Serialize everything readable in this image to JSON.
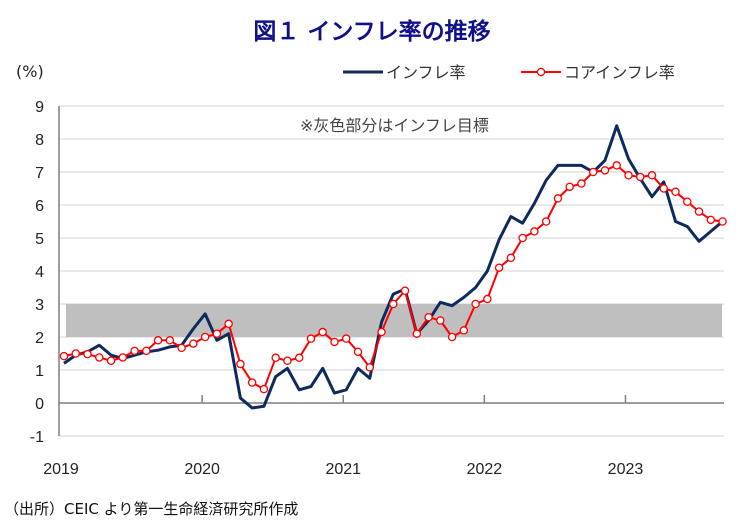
{
  "title": "図１ インフレ率の推移",
  "source": "（出所）CEIC より第一生命経済研究所作成",
  "colors": {
    "inflation": "#0e2a5c",
    "core": "#ff0000",
    "band": "#bfbfbf",
    "title": "#10108a"
  },
  "chart_data": {
    "type": "line",
    "title": "図１ インフレ率の推移",
    "ylabel": "(%)",
    "xlabel": "",
    "ylim": [
      -1,
      9
    ],
    "yticks": [
      "-1",
      "0",
      "1",
      "2",
      "3",
      "4",
      "5",
      "6",
      "7",
      "8",
      "9"
    ],
    "xticks": [
      "2019",
      "2020",
      "2021",
      "2022",
      "2023"
    ],
    "x_start": "2019-01",
    "x_end": "2023-09",
    "frequency": "monthly",
    "grid": true,
    "legend_position": "top-right",
    "annotation": "※灰色部分はインフレ目標",
    "target_band": [
      2,
      3
    ],
    "series": [
      {
        "name": "インフレ率",
        "values": [
          1.2,
          1.45,
          1.55,
          1.75,
          1.45,
          1.35,
          1.45,
          1.55,
          1.6,
          1.7,
          1.75,
          2.25,
          2.7,
          1.9,
          2.1,
          0.15,
          -0.15,
          -0.1,
          0.8,
          1.05,
          0.4,
          0.5,
          1.05,
          0.3,
          0.4,
          1.05,
          0.75,
          2.45,
          3.3,
          3.45,
          2.1,
          2.5,
          3.05,
          2.95,
          3.2,
          3.5,
          4.0,
          4.95,
          5.65,
          5.45,
          6.05,
          6.75,
          7.2,
          7.2,
          7.2,
          7.0,
          7.35,
          8.4,
          7.4,
          6.8,
          6.25,
          6.7,
          5.5,
          5.35,
          4.9,
          5.2,
          5.5
        ]
      },
      {
        "name": "コアインフレ率",
        "values": [
          1.42,
          1.5,
          1.48,
          1.38,
          1.28,
          1.38,
          1.58,
          1.58,
          1.9,
          1.9,
          1.67,
          1.8,
          2.0,
          2.1,
          2.4,
          1.18,
          0.62,
          0.42,
          1.37,
          1.28,
          1.37,
          1.95,
          2.15,
          1.85,
          1.95,
          1.55,
          1.08,
          2.15,
          3.0,
          3.4,
          2.1,
          2.6,
          2.5,
          2.0,
          2.2,
          3.0,
          3.15,
          4.1,
          4.4,
          5.0,
          5.2,
          5.5,
          6.2,
          6.55,
          6.65,
          7.0,
          7.05,
          7.2,
          6.9,
          6.85,
          6.9,
          6.5,
          6.4,
          6.1,
          5.8,
          5.55,
          5.5
        ]
      }
    ]
  }
}
